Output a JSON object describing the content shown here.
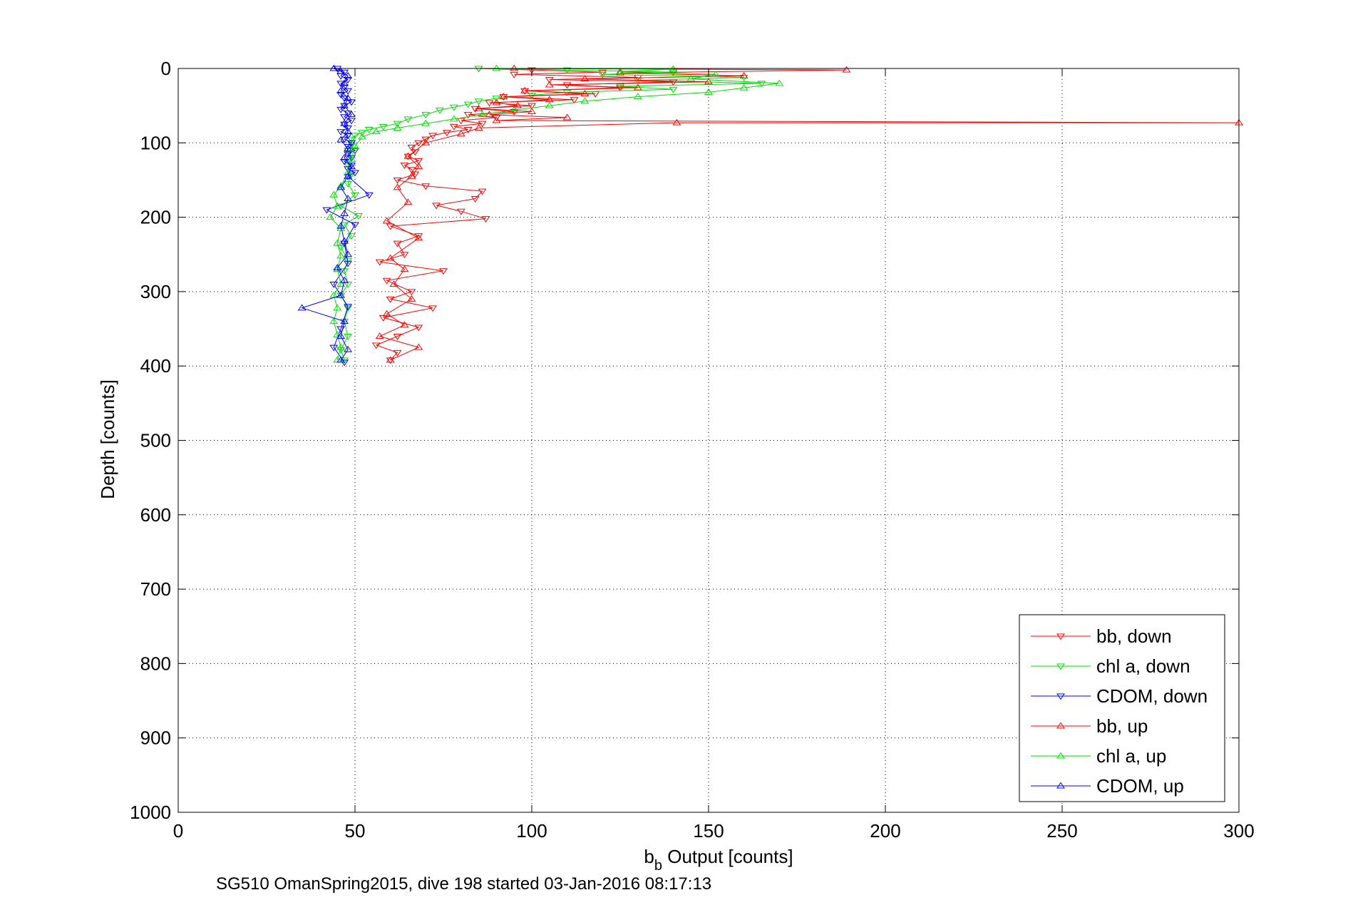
{
  "chart_data": {
    "type": "line",
    "xlabel_main": "b",
    "xlabel_sub": "b",
    "xlabel_rest": " Output [counts]",
    "ylabel": "Depth [counts]",
    "caption": "SG510 OmanSpring2015, dive 198 started 03-Jan-2016 08:17:13",
    "xlim": [
      0,
      300
    ],
    "ylim": [
      0,
      1000
    ],
    "y_reversed": true,
    "grid": true,
    "legend_position": "bottom-right",
    "xticks": [
      "0",
      "50",
      "100",
      "150",
      "200",
      "250",
      "300"
    ],
    "yticks": [
      "0",
      "100",
      "200",
      "300",
      "400",
      "500",
      "600",
      "700",
      "800",
      "900",
      "1000"
    ],
    "series": [
      {
        "name": "bb, down",
        "color": "#ff0000",
        "marker": "triangle-down",
        "points": [
          [
            85,
            0
          ],
          [
            100,
            2
          ],
          [
            120,
            5
          ],
          [
            95,
            8
          ],
          [
            130,
            12
          ],
          [
            105,
            15
          ],
          [
            140,
            18
          ],
          [
            110,
            22
          ],
          [
            125,
            26
          ],
          [
            98,
            30
          ],
          [
            118,
            34
          ],
          [
            92,
            38
          ],
          [
            112,
            42
          ],
          [
            88,
            46
          ],
          [
            100,
            50
          ],
          [
            84,
            54
          ],
          [
            95,
            58
          ],
          [
            82,
            62
          ],
          [
            90,
            66
          ],
          [
            80,
            70
          ],
          [
            86,
            74
          ],
          [
            78,
            78
          ],
          [
            82,
            82
          ],
          [
            76,
            86
          ],
          [
            72,
            90
          ],
          [
            70,
            95
          ],
          [
            68,
            100
          ],
          [
            66,
            106
          ],
          [
            67,
            112
          ],
          [
            65,
            118
          ],
          [
            68,
            124
          ],
          [
            64,
            130
          ],
          [
            66,
            136
          ],
          [
            67,
            142
          ],
          [
            62,
            150
          ],
          [
            70,
            158
          ],
          [
            86,
            165
          ],
          [
            84,
            175
          ],
          [
            73,
            184
          ],
          [
            80,
            192
          ],
          [
            87,
            202
          ],
          [
            60,
            212
          ],
          [
            68,
            225
          ],
          [
            62,
            235
          ],
          [
            64,
            250
          ],
          [
            57,
            260
          ],
          [
            75,
            272
          ],
          [
            59,
            285
          ],
          [
            66,
            300
          ],
          [
            60,
            310
          ],
          [
            72,
            322
          ],
          [
            58,
            335
          ],
          [
            68,
            348
          ],
          [
            62,
            360
          ],
          [
            56,
            372
          ],
          [
            62,
            382
          ],
          [
            60,
            392
          ]
        ]
      },
      {
        "name": "chl a, down",
        "color": "#00dd00",
        "marker": "triangle-down",
        "points": [
          [
            85,
            0
          ],
          [
            110,
            2
          ],
          [
            140,
            5
          ],
          [
            120,
            8
          ],
          [
            160,
            12
          ],
          [
            130,
            16
          ],
          [
            165,
            20
          ],
          [
            125,
            24
          ],
          [
            140,
            28
          ],
          [
            110,
            32
          ],
          [
            100,
            36
          ],
          [
            90,
            40
          ],
          [
            85,
            44
          ],
          [
            82,
            48
          ],
          [
            78,
            52
          ],
          [
            74,
            56
          ],
          [
            70,
            62
          ],
          [
            65,
            68
          ],
          [
            62,
            74
          ],
          [
            58,
            78
          ],
          [
            54,
            82
          ],
          [
            52,
            86
          ],
          [
            50,
            90
          ],
          [
            49,
            95
          ],
          [
            49,
            102
          ],
          [
            48,
            110
          ],
          [
            49,
            120
          ],
          [
            48,
            130
          ],
          [
            49,
            142
          ],
          [
            48,
            155
          ],
          [
            50,
            170
          ],
          [
            46,
            185
          ],
          [
            51,
            198
          ],
          [
            47,
            210
          ],
          [
            49,
            225
          ],
          [
            46,
            240
          ],
          [
            48,
            258
          ],
          [
            47,
            272
          ],
          [
            48,
            290
          ],
          [
            46,
            305
          ],
          [
            48,
            322
          ],
          [
            47,
            340
          ],
          [
            48,
            360
          ],
          [
            46,
            378
          ],
          [
            47,
            392
          ]
        ]
      },
      {
        "name": "CDOM, down",
        "color": "#0000ff",
        "marker": "triangle-down",
        "points": [
          [
            45,
            0
          ],
          [
            47,
            5
          ],
          [
            46,
            10
          ],
          [
            48,
            15
          ],
          [
            46,
            20
          ],
          [
            47,
            25
          ],
          [
            48,
            30
          ],
          [
            46,
            35
          ],
          [
            47,
            40
          ],
          [
            49,
            45
          ],
          [
            47,
            50
          ],
          [
            46,
            55
          ],
          [
            48,
            60
          ],
          [
            47,
            65
          ],
          [
            49,
            70
          ],
          [
            47,
            75
          ],
          [
            48,
            80
          ],
          [
            46,
            85
          ],
          [
            48,
            90
          ],
          [
            47,
            95
          ],
          [
            49,
            100
          ],
          [
            48,
            105
          ],
          [
            50,
            110
          ],
          [
            48,
            115
          ],
          [
            49,
            120
          ],
          [
            47,
            125
          ],
          [
            49,
            130
          ],
          [
            48,
            135
          ],
          [
            50,
            140
          ],
          [
            48,
            145
          ],
          [
            54,
            170
          ],
          [
            42,
            190
          ],
          [
            50,
            210
          ],
          [
            47,
            235
          ],
          [
            48,
            262
          ],
          [
            44,
            290
          ],
          [
            48,
            320
          ],
          [
            46,
            350
          ],
          [
            44,
            375
          ],
          [
            47,
            395
          ]
        ]
      },
      {
        "name": "bb, up",
        "color": "#ff0000",
        "marker": "triangle-up",
        "points": [
          [
            60,
            392
          ],
          [
            68,
            375
          ],
          [
            57,
            360
          ],
          [
            64,
            345
          ],
          [
            59,
            330
          ],
          [
            66,
            310
          ],
          [
            61,
            290
          ],
          [
            64,
            270
          ],
          [
            60,
            255
          ],
          [
            68,
            228
          ],
          [
            59,
            205
          ],
          [
            65,
            180
          ],
          [
            62,
            160
          ],
          [
            66,
            145
          ],
          [
            68,
            132
          ],
          [
            65,
            118
          ],
          [
            70,
            100
          ],
          [
            80,
            88
          ],
          [
            85,
            80
          ],
          [
            141,
            73
          ],
          [
            300,
            73
          ],
          [
            90,
            70
          ],
          [
            110,
            66
          ],
          [
            88,
            62
          ],
          [
            100,
            58
          ],
          [
            85,
            54
          ],
          [
            96,
            50
          ],
          [
            90,
            46
          ],
          [
            105,
            42
          ],
          [
            92,
            38
          ],
          [
            115,
            34
          ],
          [
            98,
            30
          ],
          [
            130,
            26
          ],
          [
            105,
            22
          ],
          [
            150,
            18
          ],
          [
            115,
            14
          ],
          [
            160,
            10
          ],
          [
            125,
            6
          ],
          [
            189,
            2
          ],
          [
            95,
            0
          ]
        ]
      },
      {
        "name": "chl a, up",
        "color": "#00dd00",
        "marker": "triangle-up",
        "points": [
          [
            45,
            392
          ],
          [
            46,
            375
          ],
          [
            45,
            358
          ],
          [
            44,
            340
          ],
          [
            45,
            322
          ],
          [
            44,
            305
          ],
          [
            46,
            290
          ],
          [
            45,
            270
          ],
          [
            46,
            252
          ],
          [
            45,
            235
          ],
          [
            46,
            215
          ],
          [
            43,
            200
          ],
          [
            45,
            185
          ],
          [
            44,
            170
          ],
          [
            46,
            158
          ],
          [
            48,
            140
          ],
          [
            49,
            122
          ],
          [
            50,
            105
          ],
          [
            52,
            92
          ],
          [
            56,
            85
          ],
          [
            62,
            80
          ],
          [
            70,
            74
          ],
          [
            78,
            68
          ],
          [
            86,
            62
          ],
          [
            95,
            56
          ],
          [
            105,
            50
          ],
          [
            115,
            44
          ],
          [
            130,
            38
          ],
          [
            150,
            32
          ],
          [
            160,
            26
          ],
          [
            170,
            20
          ],
          [
            145,
            14
          ],
          [
            152,
            8
          ],
          [
            125,
            4
          ],
          [
            140,
            1
          ],
          [
            90,
            0
          ]
        ]
      },
      {
        "name": "CDOM, up",
        "color": "#0000ff",
        "marker": "triangle-up",
        "points": [
          [
            46,
            392
          ],
          [
            48,
            378
          ],
          [
            46,
            360
          ],
          [
            47,
            340
          ],
          [
            35,
            322
          ],
          [
            46,
            305
          ],
          [
            47,
            285
          ],
          [
            45,
            268
          ],
          [
            48,
            250
          ],
          [
            47,
            232
          ],
          [
            46,
            212
          ],
          [
            47,
            195
          ],
          [
            48,
            175
          ],
          [
            46,
            160
          ],
          [
            48,
            145
          ],
          [
            49,
            132
          ],
          [
            47,
            120
          ],
          [
            48,
            108
          ],
          [
            46,
            96
          ],
          [
            48,
            85
          ],
          [
            47,
            74
          ],
          [
            49,
            62
          ],
          [
            47,
            50
          ],
          [
            48,
            40
          ],
          [
            46,
            30
          ],
          [
            47,
            20
          ],
          [
            48,
            10
          ],
          [
            46,
            4
          ],
          [
            44,
            0
          ]
        ]
      }
    ]
  }
}
